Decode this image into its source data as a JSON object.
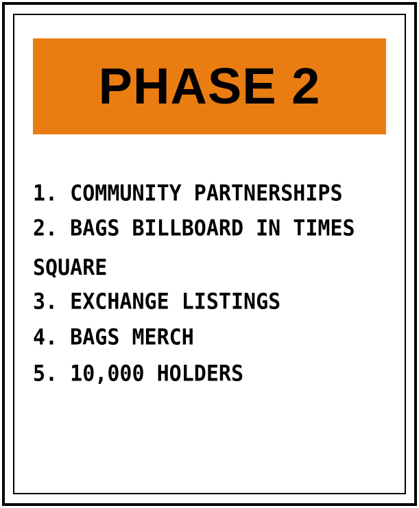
{
  "colors": {
    "banner": "#ea7d12",
    "frame": "#000000",
    "text": "#000000",
    "background": "#ffffff"
  },
  "header": {
    "title": "PHASE 2"
  },
  "items": [
    "1. COMMUNITY PARTNERSHIPS",
    "2. BAGS BILLBOARD IN TIMES SQUARE",
    "3. EXCHANGE LISTINGS",
    "4. BAGS MERCH",
    "5. 10,000 HOLDERS"
  ]
}
